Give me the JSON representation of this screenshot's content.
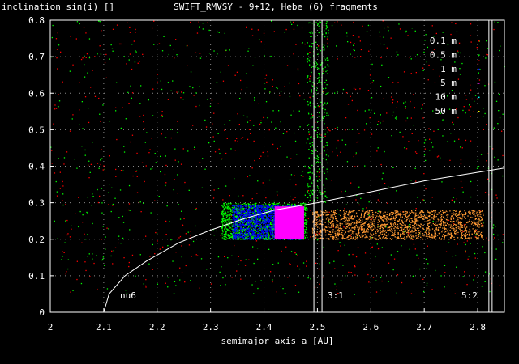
{
  "chart_data": {
    "type": "scatter",
    "title": "SWIFT_RMVSY - 9+12, Hebe (6) fragments",
    "xlabel": "semimajor axis a [AU]",
    "ylabel": "inclination sin(i) []",
    "xlim": [
      2.0,
      2.85
    ],
    "ylim": [
      0.0,
      0.8
    ],
    "grid": true,
    "legend_position": "top-right",
    "x_ticks": [
      "2",
      "2.1",
      "2.2",
      "2.3",
      "2.4",
      "2.5",
      "2.6",
      "2.7",
      "2.8"
    ],
    "y_ticks": [
      "0",
      "0.1",
      "0.2",
      "0.3",
      "0.4",
      "0.5",
      "0.6",
      "0.7",
      "0.8"
    ],
    "legend": [
      {
        "label": "0.1 m",
        "color": "#ff0000"
      },
      {
        "label": "0.5 m",
        "color": "#00ff00"
      },
      {
        "label": "1 m",
        "color": "#0000ff"
      },
      {
        "label": "5 m",
        "color": "#ff00ff"
      },
      {
        "label": "10 m",
        "color": "#00ffff"
      },
      {
        "label": "50 m",
        "color": "#ffff00"
      }
    ],
    "series_regions": [
      {
        "color": "#ff0000",
        "a": [
          2.0,
          2.85
        ],
        "sini": [
          0.05,
          0.8
        ],
        "density": "sparse"
      },
      {
        "color": "#00ff00",
        "a": [
          2.0,
          2.85
        ],
        "sini": [
          0.05,
          0.8
        ],
        "density": "sparse"
      },
      {
        "color": "#00ff00",
        "a": [
          2.32,
          2.48
        ],
        "sini": [
          0.2,
          0.3
        ],
        "density": "dense"
      },
      {
        "color": "#00ff00",
        "a": [
          2.48,
          2.52
        ],
        "sini": [
          0.3,
          0.8
        ],
        "density": "medium"
      },
      {
        "color": "#0000ff",
        "a": [
          2.34,
          2.47
        ],
        "sini": [
          0.2,
          0.295
        ],
        "density": "dense"
      },
      {
        "color": "#ff00ff",
        "a": [
          2.42,
          2.475
        ],
        "sini": [
          0.2,
          0.29
        ],
        "density": "solid"
      },
      {
        "color": "#ff9933",
        "a": [
          2.49,
          2.81
        ],
        "sini": [
          0.2,
          0.28
        ],
        "density": "dense"
      }
    ],
    "nu6_curve": {
      "label": "nu6",
      "a": [
        2.1,
        2.11,
        2.14,
        2.18,
        2.24,
        2.3,
        2.36,
        2.42,
        2.5,
        2.6,
        2.7,
        2.85
      ],
      "sini": [
        0.0,
        0.05,
        0.1,
        0.14,
        0.19,
        0.225,
        0.255,
        0.28,
        0.3,
        0.33,
        0.36,
        0.395
      ]
    },
    "resonances": [
      {
        "label": "3:1",
        "a": 2.501
      },
      {
        "label": "5:2",
        "a": 2.824
      }
    ]
  }
}
